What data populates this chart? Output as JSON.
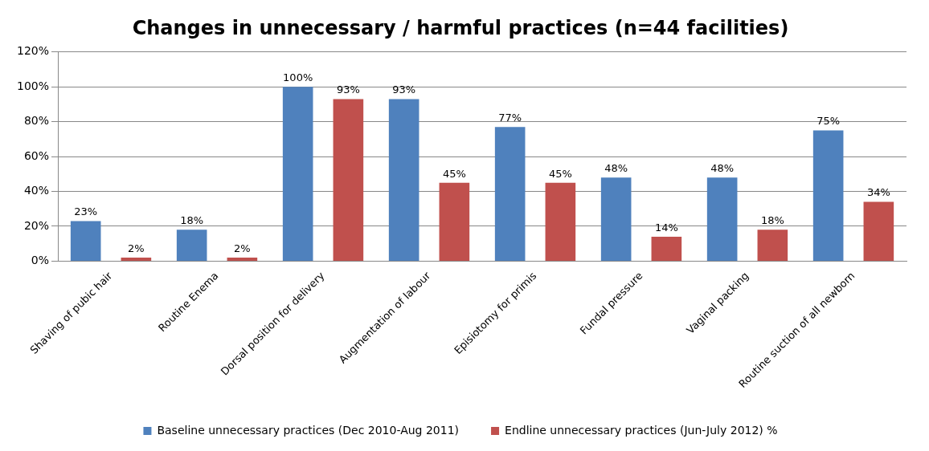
{
  "chart_data": {
    "type": "bar",
    "title": "Changes in unnecessary / harmful practices (n=44 facilities)",
    "categories": [
      "Shaving of pubic hair",
      "Routine Enema",
      "Dorsal position for delivery",
      "Augmentation of labour",
      "Episiotomy for primis",
      "Fundal pressure",
      "Vaginal packing",
      "Routine suction of all newborn"
    ],
    "series": [
      {
        "name": "Baseline unnecessary practices (Dec 2010-Aug 2011)",
        "color": "#4f81bd",
        "values": [
          23,
          18,
          100,
          93,
          77,
          48,
          48,
          75
        ],
        "value_labels": [
          "23%",
          "18%",
          "100%",
          "93%",
          "77%",
          "48%",
          "48%",
          "75%"
        ]
      },
      {
        "name": "Endline unnecessary practices (Jun-July 2012) %",
        "color": "#c0504d",
        "values": [
          2,
          2,
          93,
          45,
          45,
          14,
          18,
          34
        ],
        "value_labels": [
          "2%",
          "2%",
          "93%",
          "45%",
          "45%",
          "14%",
          "18%",
          "34%"
        ]
      }
    ],
    "ylim": [
      0,
      120
    ],
    "yticks": [
      {
        "value": 0,
        "label": "0%"
      },
      {
        "value": 20,
        "label": "20%"
      },
      {
        "value": 40,
        "label": "40%"
      },
      {
        "value": 60,
        "label": "60%"
      },
      {
        "value": 80,
        "label": "80%"
      },
      {
        "value": 100,
        "label": "100%"
      },
      {
        "value": 120,
        "label": "120%"
      }
    ],
    "grid": "y",
    "legend": "bottom"
  }
}
